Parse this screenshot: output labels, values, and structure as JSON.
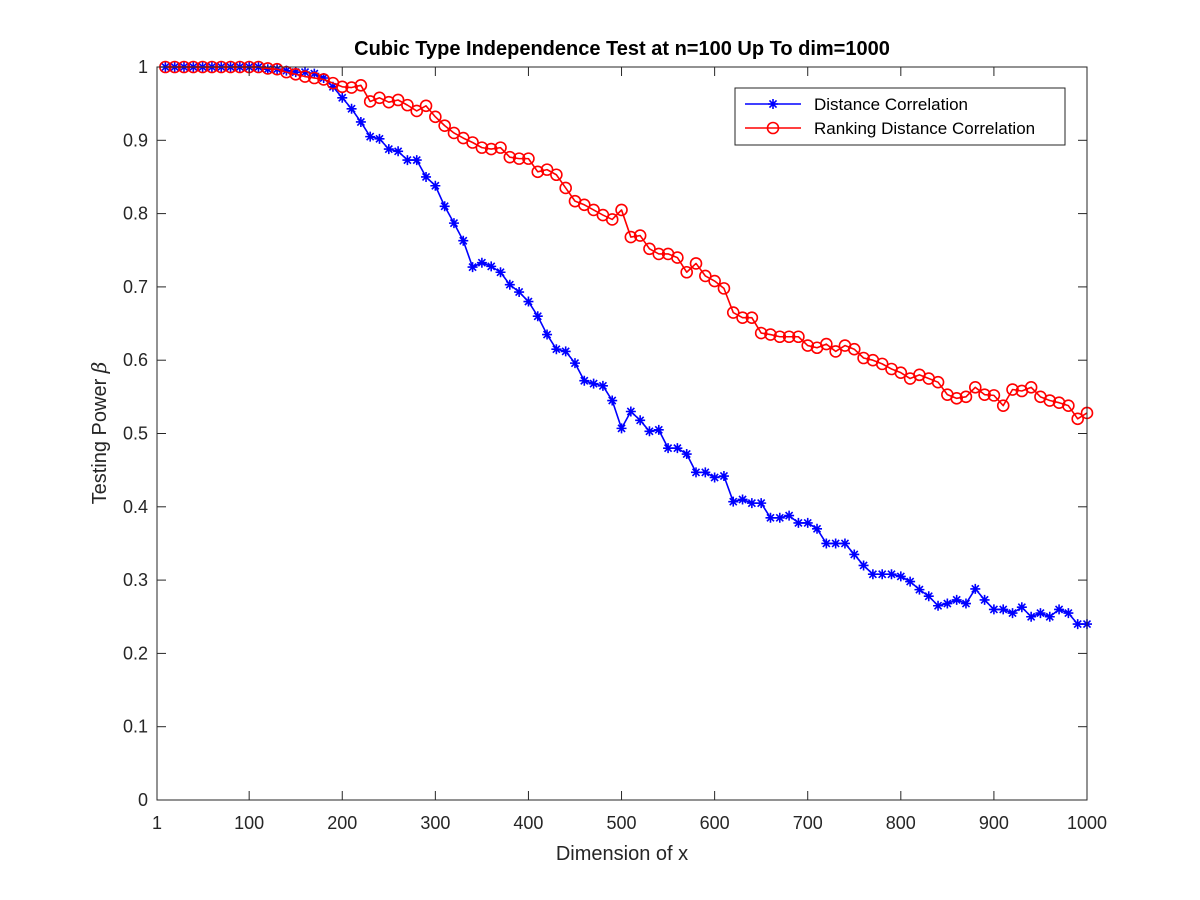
{
  "chart_data": {
    "type": "line",
    "title": "Cubic Type Independence Test at n=100 Up To dim=1000",
    "xlabel": "Dimension of x",
    "ylabel_text": "Testing Power ",
    "ylabel_symbol": "β",
    "xlim": [
      1,
      1000
    ],
    "ylim": [
      0,
      1
    ],
    "x_ticks": [
      1,
      100,
      200,
      300,
      400,
      500,
      600,
      700,
      800,
      900,
      1000
    ],
    "x_tick_labels": [
      "1",
      "100",
      "200",
      "300",
      "400",
      "500",
      "600",
      "700",
      "800",
      "900",
      "1000"
    ],
    "y_ticks": [
      0,
      0.1,
      0.2,
      0.3,
      0.4,
      0.5,
      0.6,
      0.7,
      0.8,
      0.9,
      1
    ],
    "y_tick_labels": [
      "0",
      "0.1",
      "0.2",
      "0.3",
      "0.4",
      "0.5",
      "0.6",
      "0.7",
      "0.8",
      "0.9",
      "1"
    ],
    "grid": false,
    "legend_position": "top-right",
    "x": [
      10,
      20,
      30,
      40,
      50,
      60,
      70,
      80,
      90,
      100,
      110,
      120,
      130,
      140,
      150,
      160,
      170,
      180,
      190,
      200,
      210,
      220,
      230,
      240,
      250,
      260,
      270,
      280,
      290,
      300,
      310,
      320,
      330,
      340,
      350,
      360,
      370,
      380,
      390,
      400,
      410,
      420,
      430,
      440,
      450,
      460,
      470,
      480,
      490,
      500,
      510,
      520,
      530,
      540,
      550,
      560,
      570,
      580,
      590,
      600,
      610,
      620,
      630,
      640,
      650,
      660,
      670,
      680,
      690,
      700,
      710,
      720,
      730,
      740,
      750,
      760,
      770,
      780,
      790,
      800,
      810,
      820,
      830,
      840,
      850,
      860,
      870,
      880,
      890,
      900,
      910,
      920,
      930,
      940,
      950,
      960,
      970,
      980,
      990,
      1000
    ],
    "series": [
      {
        "name": "Distance Correlation",
        "color": "#0000ff",
        "marker": "asterisk",
        "values": [
          1,
          1,
          1,
          1,
          1,
          1,
          1,
          1,
          1,
          1,
          1,
          0.997,
          0.997,
          0.995,
          0.993,
          0.993,
          0.991,
          0.985,
          0.973,
          0.958,
          0.943,
          0.925,
          0.905,
          0.902,
          0.888,
          0.885,
          0.873,
          0.873,
          0.85,
          0.838,
          0.81,
          0.787,
          0.763,
          0.727,
          0.733,
          0.728,
          0.72,
          0.703,
          0.693,
          0.68,
          0.66,
          0.635,
          0.615,
          0.612,
          0.596,
          0.572,
          0.568,
          0.565,
          0.545,
          0.507,
          0.53,
          0.518,
          0.503,
          0.505,
          0.48,
          0.48,
          0.472,
          0.447,
          0.447,
          0.44,
          0.442,
          0.407,
          0.41,
          0.405,
          0.405,
          0.385,
          0.385,
          0.388,
          0.378,
          0.378,
          0.37,
          0.35,
          0.35,
          0.35,
          0.335,
          0.32,
          0.308,
          0.308,
          0.308,
          0.305,
          0.298,
          0.287,
          0.278,
          0.265,
          0.268,
          0.273,
          0.268,
          0.288,
          0.273,
          0.26,
          0.26,
          0.255,
          0.263,
          0.25,
          0.255,
          0.25,
          0.26,
          0.255,
          0.24,
          0.24
        ]
      },
      {
        "name": "Ranking Distance Correlation",
        "color": "#ff0000",
        "marker": "circle",
        "values": [
          1,
          1,
          1,
          1,
          1,
          1,
          1,
          1,
          1,
          1,
          1,
          0.998,
          0.997,
          0.993,
          0.99,
          0.987,
          0.985,
          0.983,
          0.978,
          0.973,
          0.972,
          0.975,
          0.953,
          0.958,
          0.952,
          0.955,
          0.948,
          0.94,
          0.947,
          0.932,
          0.92,
          0.91,
          0.903,
          0.897,
          0.89,
          0.888,
          0.89,
          0.877,
          0.875,
          0.875,
          0.857,
          0.86,
          0.853,
          0.835,
          0.817,
          0.812,
          0.805,
          0.798,
          0.792,
          0.805,
          0.768,
          0.77,
          0.752,
          0.745,
          0.745,
          0.74,
          0.72,
          0.732,
          0.715,
          0.708,
          0.698,
          0.665,
          0.658,
          0.658,
          0.637,
          0.635,
          0.632,
          0.632,
          0.632,
          0.62,
          0.617,
          0.622,
          0.612,
          0.62,
          0.615,
          0.603,
          0.6,
          0.595,
          0.588,
          0.583,
          0.575,
          0.58,
          0.575,
          0.57,
          0.553,
          0.548,
          0.55,
          0.563,
          0.553,
          0.552,
          0.538,
          0.56,
          0.558,
          0.563,
          0.55,
          0.545,
          0.542,
          0.538,
          0.52,
          0.528
        ]
      }
    ]
  }
}
